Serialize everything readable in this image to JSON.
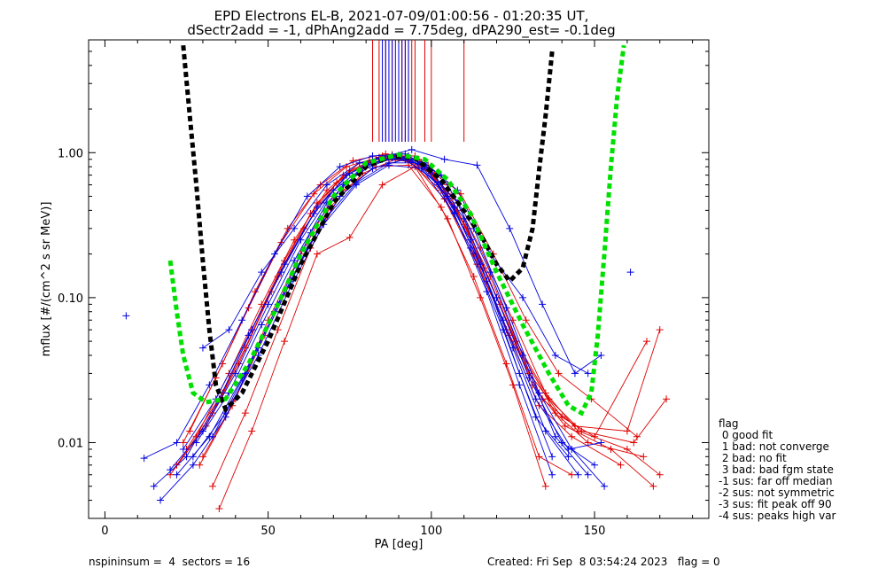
{
  "chart_data": {
    "type": "line",
    "title": "EPD Electrons EL-B, 2021-07-09/01:00:56 - 01:20:35 UT,",
    "subtitle": "dSectr2add = -1, dPhAng2add = 7.75deg, dPA290_est=  -0.1deg",
    "xlabel": "PA [deg]",
    "ylabel": "mflux [#/(cm^2 s sr MeV)]",
    "xlim": [
      -5,
      185
    ],
    "ylim": [
      0.003,
      6.0
    ],
    "yscale": "log",
    "x_ticks": [
      0,
      50,
      100,
      150
    ],
    "x_tick_labels": [
      "0",
      "50",
      "100",
      "150"
    ],
    "y_ticks": [
      1.0,
      0.1,
      0.01
    ],
    "y_tick_labels": [
      "1.00",
      "0.10",
      "0.01"
    ],
    "colors": {
      "red": "#e00000",
      "blue": "#0000e0",
      "black": "#000000",
      "green": "#00e000"
    },
    "series_red": [
      [
        [
          25,
          0.009
        ],
        [
          36,
          0.022
        ],
        [
          45,
          0.06
        ],
        [
          55,
          0.18
        ],
        [
          65,
          0.45
        ],
        [
          75,
          0.75
        ],
        [
          85,
          0.95
        ],
        [
          95,
          0.95
        ],
        [
          105,
          0.6
        ],
        [
          115,
          0.22
        ],
        [
          125,
          0.07
        ],
        [
          135,
          0.022
        ],
        [
          145,
          0.012
        ],
        [
          160,
          0.009
        ],
        [
          170,
          0.006
        ]
      ],
      [
        [
          22,
          0.007
        ],
        [
          33,
          0.016
        ],
        [
          43,
          0.045
        ],
        [
          53,
          0.14
        ],
        [
          63,
          0.38
        ],
        [
          73,
          0.7
        ],
        [
          83,
          0.9
        ],
        [
          93,
          0.88
        ],
        [
          103,
          0.55
        ],
        [
          113,
          0.2
        ],
        [
          123,
          0.06
        ],
        [
          133,
          0.018
        ],
        [
          143,
          0.011
        ],
        [
          158,
          0.007
        ]
      ],
      [
        [
          28,
          0.011
        ],
        [
          38,
          0.03
        ],
        [
          48,
          0.09
        ],
        [
          58,
          0.25
        ],
        [
          68,
          0.55
        ],
        [
          78,
          0.85
        ],
        [
          88,
          0.97
        ],
        [
          98,
          0.8
        ],
        [
          108,
          0.4
        ],
        [
          118,
          0.14
        ],
        [
          128,
          0.04
        ],
        [
          138,
          0.016
        ],
        [
          148,
          0.01
        ],
        [
          165,
          0.008
        ]
      ],
      [
        [
          20,
          0.006
        ],
        [
          31,
          0.013
        ],
        [
          41,
          0.035
        ],
        [
          51,
          0.11
        ],
        [
          61,
          0.3
        ],
        [
          71,
          0.62
        ],
        [
          81,
          0.88
        ],
        [
          91,
          0.95
        ],
        [
          101,
          0.7
        ],
        [
          111,
          0.3
        ],
        [
          121,
          0.09
        ],
        [
          131,
          0.025
        ],
        [
          141,
          0.013
        ],
        [
          155,
          0.009
        ],
        [
          168,
          0.005
        ]
      ],
      [
        [
          33,
          0.005
        ],
        [
          43,
          0.016
        ],
        [
          53,
          0.06
        ],
        [
          63,
          0.22
        ],
        [
          73,
          0.55
        ],
        [
          83,
          0.8
        ],
        [
          93,
          0.82
        ],
        [
          103,
          0.42
        ],
        [
          113,
          0.14
        ],
        [
          123,
          0.035
        ],
        [
          133,
          0.008
        ],
        [
          143,
          0.006
        ]
      ],
      [
        [
          26,
          0.012
        ],
        [
          36,
          0.035
        ],
        [
          46,
          0.11
        ],
        [
          56,
          0.3
        ],
        [
          66,
          0.6
        ],
        [
          76,
          0.88
        ],
        [
          86,
          0.98
        ],
        [
          96,
          0.9
        ],
        [
          106,
          0.5
        ],
        [
          116,
          0.16
        ],
        [
          126,
          0.05
        ],
        [
          136,
          0.02
        ],
        [
          146,
          0.012
        ],
        [
          162,
          0.01
        ],
        [
          172,
          0.02
        ]
      ],
      [
        [
          30,
          0.008
        ],
        [
          40,
          0.02
        ],
        [
          50,
          0.07
        ],
        [
          60,
          0.2
        ],
        [
          70,
          0.5
        ],
        [
          80,
          0.82
        ],
        [
          90,
          0.92
        ],
        [
          100,
          0.72
        ],
        [
          110,
          0.32
        ],
        [
          120,
          0.1
        ],
        [
          130,
          0.03
        ],
        [
          140,
          0.015
        ],
        [
          150,
          0.011
        ],
        [
          166,
          0.05
        ]
      ],
      [
        [
          24,
          0.01
        ],
        [
          34,
          0.028
        ],
        [
          44,
          0.085
        ],
        [
          54,
          0.24
        ],
        [
          64,
          0.52
        ],
        [
          74,
          0.8
        ],
        [
          84,
          0.93
        ],
        [
          94,
          0.86
        ],
        [
          104,
          0.48
        ],
        [
          114,
          0.17
        ],
        [
          124,
          0.055
        ],
        [
          134,
          0.02
        ],
        [
          144,
          0.013
        ],
        [
          160,
          0.012
        ],
        [
          170,
          0.06
        ]
      ],
      [
        [
          35,
          0.0035
        ],
        [
          45,
          0.012
        ],
        [
          55,
          0.05
        ],
        [
          65,
          0.2
        ],
        [
          75,
          0.26
        ],
        [
          85,
          0.6
        ],
        [
          95,
          0.8
        ],
        [
          105,
          0.35
        ],
        [
          115,
          0.1
        ],
        [
          125,
          0.025
        ],
        [
          135,
          0.005
        ]
      ],
      [
        [
          29,
          0.007
        ],
        [
          39,
          0.018
        ],
        [
          49,
          0.055
        ],
        [
          59,
          0.16
        ],
        [
          69,
          0.42
        ],
        [
          79,
          0.72
        ],
        [
          89,
          0.9
        ],
        [
          99,
          0.82
        ],
        [
          109,
          0.52
        ],
        [
          119,
          0.2
        ],
        [
          129,
          0.07
        ],
        [
          139,
          0.03
        ],
        [
          149,
          0.02
        ],
        [
          163,
          0.011
        ]
      ]
    ],
    "series_blue": [
      [
        [
          12,
          0.0078
        ],
        [
          22,
          0.01
        ],
        [
          32,
          0.025
        ],
        [
          42,
          0.07
        ],
        [
          52,
          0.2
        ],
        [
          62,
          0.5
        ],
        [
          72,
          0.8
        ],
        [
          82,
          0.95
        ],
        [
          92,
          0.98
        ],
        [
          102,
          0.6
        ],
        [
          112,
          0.22
        ],
        [
          122,
          0.06
        ],
        [
          132,
          0.015
        ],
        [
          142,
          0.008
        ]
      ],
      [
        [
          15,
          0.005
        ],
        [
          25,
          0.008
        ],
        [
          35,
          0.02
        ],
        [
          45,
          0.06
        ],
        [
          55,
          0.17
        ],
        [
          65,
          0.42
        ],
        [
          75,
          0.72
        ],
        [
          85,
          0.9
        ],
        [
          95,
          0.9
        ],
        [
          105,
          0.5
        ],
        [
          115,
          0.17
        ],
        [
          125,
          0.045
        ],
        [
          135,
          0.012
        ],
        [
          145,
          0.006
        ]
      ],
      [
        [
          17,
          0.004
        ],
        [
          27,
          0.007
        ],
        [
          37,
          0.015
        ],
        [
          47,
          0.045
        ],
        [
          57,
          0.13
        ],
        [
          67,
          0.34
        ],
        [
          77,
          0.62
        ],
        [
          87,
          0.85
        ],
        [
          97,
          0.85
        ],
        [
          107,
          0.42
        ],
        [
          117,
          0.13
        ],
        [
          127,
          0.03
        ],
        [
          137,
          0.008
        ]
      ],
      [
        [
          20,
          0.0065
        ],
        [
          30,
          0.012
        ],
        [
          40,
          0.03
        ],
        [
          50,
          0.09
        ],
        [
          60,
          0.25
        ],
        [
          70,
          0.55
        ],
        [
          80,
          0.82
        ],
        [
          90,
          0.96
        ],
        [
          100,
          0.75
        ],
        [
          110,
          0.35
        ],
        [
          120,
          0.1
        ],
        [
          130,
          0.028
        ],
        [
          140,
          0.01
        ],
        [
          150,
          0.007
        ]
      ],
      [
        [
          24,
          0.009
        ],
        [
          34,
          0.02
        ],
        [
          44,
          0.055
        ],
        [
          54,
          0.15
        ],
        [
          64,
          0.38
        ],
        [
          74,
          0.7
        ],
        [
          84,
          0.92
        ],
        [
          94,
          1.05
        ],
        [
          104,
          0.9
        ],
        [
          114,
          0.82
        ],
        [
          124,
          0.3
        ],
        [
          134,
          0.09
        ],
        [
          144,
          0.03
        ],
        [
          152,
          0.04
        ]
      ],
      [
        [
          27,
          0.008
        ],
        [
          37,
          0.016
        ],
        [
          47,
          0.04
        ],
        [
          57,
          0.12
        ],
        [
          67,
          0.32
        ],
        [
          77,
          0.6
        ],
        [
          87,
          0.82
        ],
        [
          97,
          0.78
        ],
        [
          107,
          0.38
        ],
        [
          117,
          0.11
        ],
        [
          127,
          0.025
        ],
        [
          137,
          0.006
        ]
      ],
      [
        [
          22,
          0.006
        ],
        [
          32,
          0.011
        ],
        [
          42,
          0.028
        ],
        [
          52,
          0.08
        ],
        [
          62,
          0.22
        ],
        [
          72,
          0.5
        ],
        [
          82,
          0.78
        ],
        [
          92,
          0.9
        ],
        [
          102,
          0.62
        ],
        [
          112,
          0.25
        ],
        [
          122,
          0.07
        ],
        [
          132,
          0.02
        ],
        [
          142,
          0.009
        ],
        [
          152,
          0.01
        ]
      ],
      [
        [
          30,
          0.045
        ],
        [
          38,
          0.06
        ],
        [
          48,
          0.15
        ],
        [
          58,
          0.3
        ],
        [
          68,
          0.6
        ],
        [
          78,
          0.85
        ],
        [
          88,
          0.95
        ],
        [
          98,
          0.85
        ],
        [
          108,
          0.55
        ],
        [
          118,
          0.2
        ],
        [
          128,
          0.1
        ],
        [
          138,
          0.04
        ],
        [
          148,
          0.03
        ]
      ],
      [
        [
          28,
          0.01
        ],
        [
          38,
          0.022
        ],
        [
          48,
          0.065
        ],
        [
          58,
          0.18
        ],
        [
          68,
          0.45
        ],
        [
          78,
          0.75
        ],
        [
          88,
          0.92
        ],
        [
          98,
          0.82
        ],
        [
          108,
          0.45
        ],
        [
          118,
          0.15
        ],
        [
          128,
          0.04
        ],
        [
          138,
          0.011
        ],
        [
          148,
          0.006
        ]
      ],
      [
        [
          33,
          0.011
        ],
        [
          43,
          0.03
        ],
        [
          53,
          0.09
        ],
        [
          63,
          0.28
        ],
        [
          73,
          0.6
        ],
        [
          83,
          0.86
        ],
        [
          93,
          0.95
        ],
        [
          103,
          0.7
        ],
        [
          113,
          0.3
        ],
        [
          123,
          0.085
        ],
        [
          133,
          0.022
        ],
        [
          143,
          0.009
        ],
        [
          153,
          0.005
        ]
      ]
    ],
    "series_black": [
      [
        24,
        5.5
      ],
      [
        26,
        1.8
      ],
      [
        28,
        0.6
      ],
      [
        30,
        0.18
      ],
      [
        32,
        0.06
      ],
      [
        34,
        0.025
      ],
      [
        37,
        0.017
      ],
      [
        42,
        0.022
      ],
      [
        50,
        0.05
      ],
      [
        60,
        0.17
      ],
      [
        70,
        0.45
      ],
      [
        80,
        0.8
      ],
      [
        88,
        0.95
      ],
      [
        95,
        0.92
      ],
      [
        103,
        0.65
      ],
      [
        110,
        0.4
      ],
      [
        116,
        0.25
      ],
      [
        120,
        0.17
      ],
      [
        124,
        0.13
      ],
      [
        128,
        0.16
      ],
      [
        131,
        0.3
      ],
      [
        133,
        0.75
      ],
      [
        135,
        1.8
      ],
      [
        137,
        5.0
      ]
    ],
    "series_green": [
      [
        20,
        0.18
      ],
      [
        22,
        0.08
      ],
      [
        24,
        0.04
      ],
      [
        27,
        0.022
      ],
      [
        31,
        0.019
      ],
      [
        37,
        0.02
      ],
      [
        44,
        0.035
      ],
      [
        52,
        0.08
      ],
      [
        60,
        0.2
      ],
      [
        70,
        0.5
      ],
      [
        80,
        0.85
      ],
      [
        90,
        0.97
      ],
      [
        98,
        0.9
      ],
      [
        105,
        0.65
      ],
      [
        112,
        0.38
      ],
      [
        120,
        0.15
      ],
      [
        128,
        0.065
      ],
      [
        136,
        0.03
      ],
      [
        142,
        0.018
      ],
      [
        146,
        0.016
      ],
      [
        149,
        0.022
      ],
      [
        151,
        0.055
      ],
      [
        153,
        0.2
      ],
      [
        155,
        0.8
      ],
      [
        157,
        2.5
      ],
      [
        159,
        5.5
      ]
    ],
    "peak_lines_red": [
      82,
      84,
      86,
      88,
      90,
      91,
      92,
      93,
      94,
      95,
      98,
      100,
      110
    ],
    "peak_lines_blue": [
      85,
      86,
      87,
      88,
      89,
      90,
      91,
      92,
      93
    ],
    "outliers_blue": [
      [
        6.5,
        0.075
      ],
      [
        161,
        0.15
      ]
    ],
    "legend": {
      "heading": "flag",
      "items": [
        " 0 good fit",
        " 1 bad: not converge",
        " 2 bad: no fit",
        " 3 bad: bad fgm state",
        "-1 sus: far off median",
        "-2 sus: not symmetric",
        "-3 sus: fit peak off 90",
        "-4 sus: peaks high var"
      ]
    }
  },
  "footer": {
    "left": "nspininsum =  4  sectors = 16",
    "right": "Created: Fri Sep  8 03:54:24 2023   flag = 0"
  }
}
